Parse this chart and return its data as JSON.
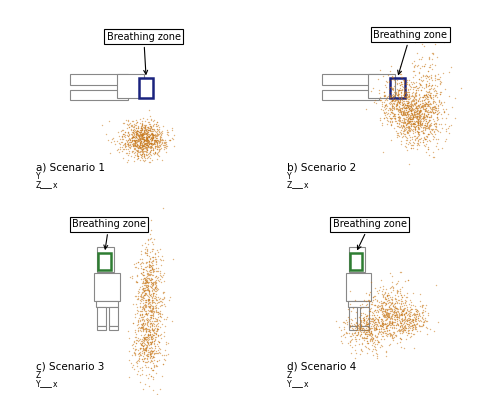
{
  "fig_width": 5.0,
  "fig_height": 3.96,
  "dpi": 100,
  "bg_color": "#ffffff",
  "particle_color": "#c8781a",
  "particle_alpha": 0.55,
  "particle_size": 1.0,
  "breathing_zone_color_ab": "#1a237e",
  "breathing_zone_color_cd": "#2e7d32",
  "body_edge_color": "#888888",
  "panel_border_color": "#999999",
  "label_fontsize": 7.5,
  "callout_fontsize": 7.0,
  "axis_label_fontsize": 5.5,
  "scenarios": [
    "a) Scenario 1",
    "b) Scenario 2",
    "c) Scenario 3",
    "d) Scenario 4"
  ],
  "panels_ab_xlim": [
    0,
    1
  ],
  "panels_ab_ylim": [
    0,
    1
  ],
  "panels_cd_xlim": [
    0,
    1
  ],
  "panels_cd_ylim": [
    0,
    1
  ]
}
